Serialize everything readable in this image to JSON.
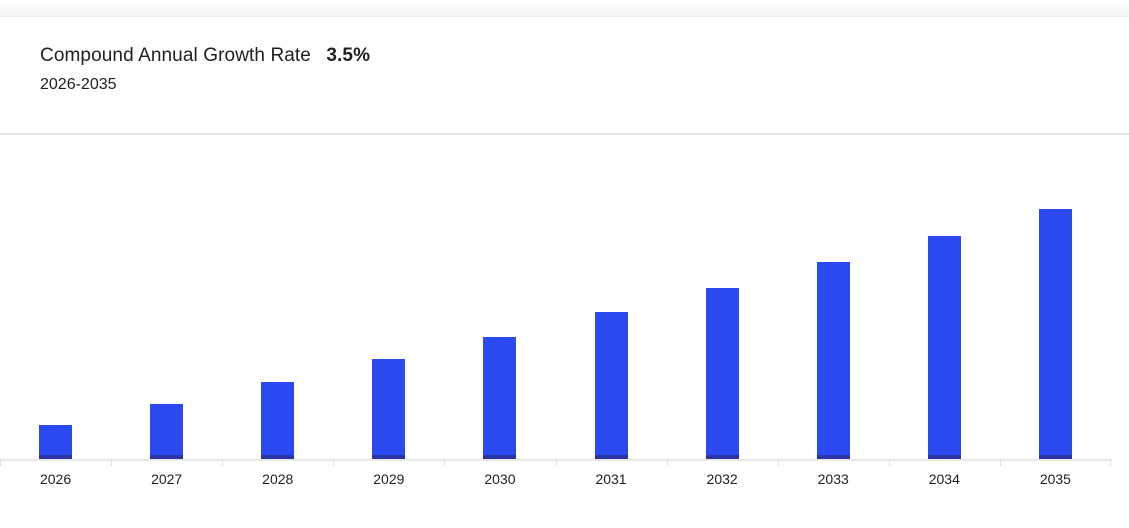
{
  "header": {
    "title": "Compound Annual Growth Rate",
    "cagr_value": "3.5%",
    "subtitle": "2026-2035"
  },
  "colors": {
    "bar": "#2b4af2",
    "bar_base": "#2c35a5",
    "axis_line": "#e8e8e8",
    "tick": "#e0e0e0",
    "text": "#202124",
    "divider": "#e7e7e7"
  },
  "chart_data": {
    "type": "bar",
    "title": "Compound Annual Growth Rate 3.5%",
    "subtitle": "2026-2035",
    "categories": [
      "2026",
      "2027",
      "2028",
      "2029",
      "2030",
      "2031",
      "2032",
      "2033",
      "2034",
      "2035"
    ],
    "values": [
      34,
      55,
      77,
      100,
      122,
      147,
      171,
      197,
      223,
      250
    ],
    "value_note": "No y-axis or data labels are shown in the chart; values are relative bar heights (pixels) depicting steady growth at 3.5% CAGR from 2026 to 2035.",
    "xlabel": "",
    "ylabel": "",
    "legend": "none",
    "grid": false,
    "bar_color": "#2b4af2",
    "ylim": [
      0,
      250
    ]
  }
}
